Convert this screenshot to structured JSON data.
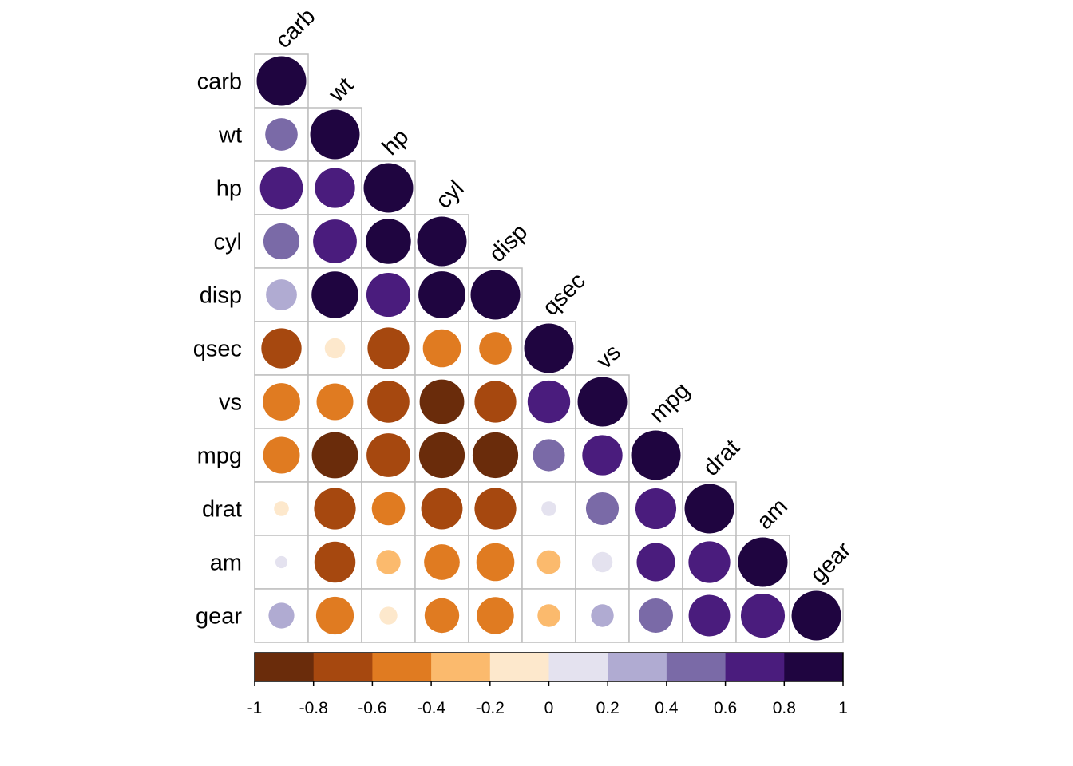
{
  "chart_data": {
    "type": "heatmap",
    "title": "",
    "subtitle": "",
    "variables": [
      "carb",
      "wt",
      "hp",
      "cyl",
      "disp",
      "qsec",
      "vs",
      "mpg",
      "drat",
      "am",
      "gear"
    ],
    "matrix_shape": "lower-triangle",
    "glyph": "circle",
    "values": [
      [
        1.0
      ],
      [
        0.43,
        1.0
      ],
      [
        0.75,
        0.66,
        1.0
      ],
      [
        0.53,
        0.78,
        0.83,
        1.0
      ],
      [
        0.39,
        0.89,
        0.79,
        0.9,
        1.0
      ],
      [
        -0.66,
        -0.17,
        -0.71,
        -0.59,
        -0.43,
        1.0
      ],
      [
        -0.57,
        -0.55,
        -0.72,
        -0.81,
        -0.71,
        0.74,
        1.0
      ],
      [
        -0.55,
        -0.87,
        -0.78,
        -0.85,
        -0.85,
        0.42,
        0.66,
        1.0
      ],
      [
        -0.09,
        -0.71,
        -0.45,
        -0.7,
        -0.71,
        0.09,
        0.44,
        0.68,
        1.0
      ],
      [
        0.06,
        -0.69,
        -0.24,
        -0.52,
        -0.59,
        -0.23,
        0.17,
        0.6,
        0.71,
        1.0
      ],
      [
        0.27,
        -0.58,
        -0.13,
        -0.49,
        -0.56,
        -0.21,
        0.21,
        0.48,
        0.7,
        0.79,
        1.0
      ]
    ],
    "colorbar": {
      "range": [
        -1,
        1
      ],
      "colors": [
        "#6a2c0b",
        "#a6480f",
        "#e07b21",
        "#fbba6d",
        "#fde8cc",
        "#e4e2ef",
        "#b0abd2",
        "#7a6aa7",
        "#4a1c7d",
        "#1f0540"
      ],
      "tick_labels": [
        "-1",
        "-0.8",
        "-0.6",
        "-0.4",
        "-0.2",
        "0",
        "0.2",
        "0.4",
        "0.6",
        "0.8",
        "1"
      ]
    }
  }
}
